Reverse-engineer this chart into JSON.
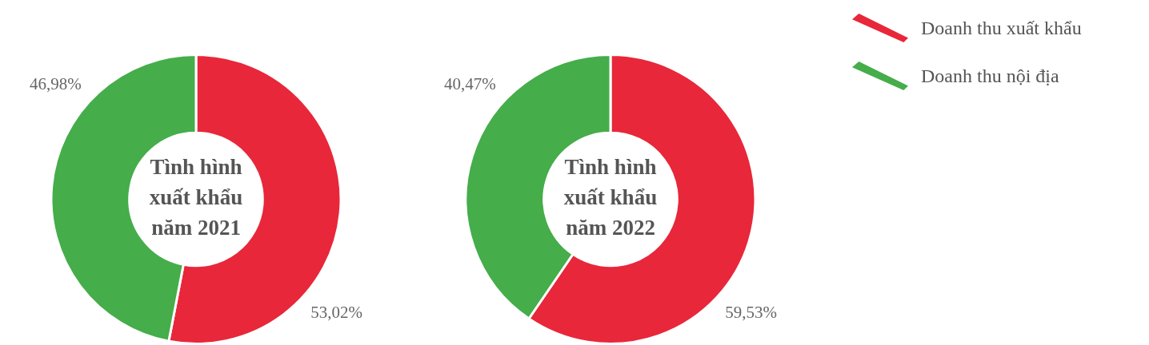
{
  "chart_data": [
    {
      "type": "donut",
      "title": "Tình hình xuất khẩu năm 2021",
      "categories": [
        "Doanh thu xuất khẩu",
        "Doanh thu nội địa"
      ],
      "values": [
        53.02,
        46.98
      ],
      "colors": [
        "#e8273a",
        "#45ad4a"
      ],
      "value_labels": [
        "53,02%",
        "46,98%"
      ],
      "legend": "top right"
    },
    {
      "type": "donut",
      "title": "Tình hình xuất khẩu năm 2022",
      "categories": [
        null,
        null
      ],
      "values": [
        59.53,
        40.47
      ],
      "colors": [
        "#e8273a",
        "#45ad4a"
      ],
      "value_labels": [
        "59,53%",
        "40,47%"
      ]
    }
  ]
}
